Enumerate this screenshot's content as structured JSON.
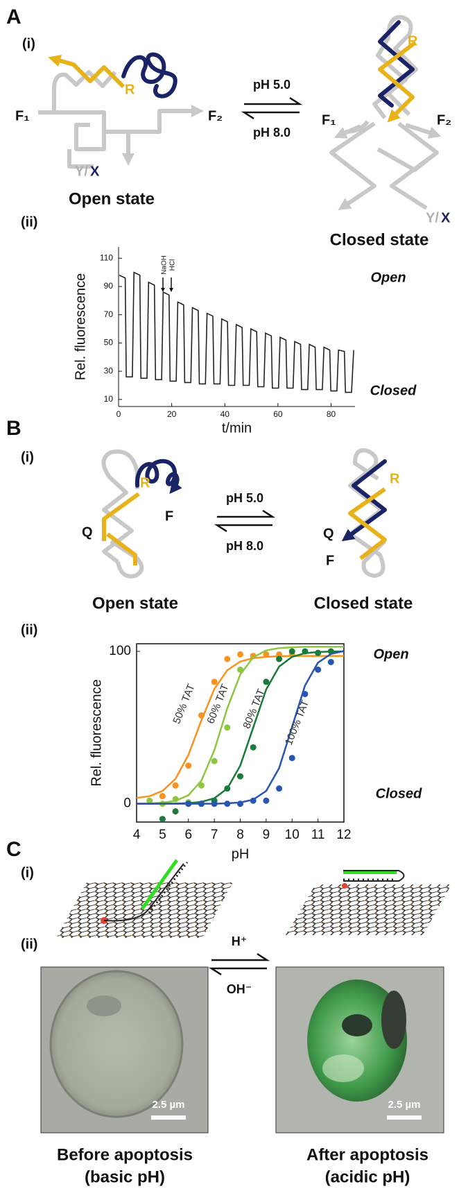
{
  "panel_labels": [
    "A",
    "B",
    "C"
  ],
  "subpanel_labels": [
    "(i)",
    "(ii)"
  ],
  "panel_a": {
    "conditions": [
      "pH 5.0",
      "pH 8.0"
    ],
    "open_state": {
      "label": "Open state",
      "strand": "R",
      "f1": "F₁",
      "f2": "F₂",
      "y": "Y/",
      "x": "X"
    },
    "closed_state": {
      "label": "Closed state",
      "strand": "R",
      "f1": "F₁",
      "f2": "F₂",
      "y": "Y/",
      "x": "X"
    }
  },
  "panel_b": {
    "conditions": [
      "pH 5.0",
      "pH 8.0"
    ],
    "open_state": {
      "label": "Open state",
      "r": "R",
      "f": "F",
      "q": "Q"
    },
    "closed_state": {
      "label": "Closed state",
      "r": "R",
      "f": "F",
      "q": "Q"
    }
  },
  "panel_c": {
    "conditions": [
      "H⁺",
      "OH⁻"
    ],
    "images": [
      {
        "scale_bar": "2.5 µm",
        "caption": [
          "Before apoptosis",
          "(basic pH)"
        ]
      },
      {
        "scale_bar": "2.5 µm",
        "caption": [
          "After apoptosis",
          "(acidic pH)"
        ]
      }
    ]
  },
  "chart_data": [
    {
      "type": "line",
      "x_label": "t/min",
      "y_label": "Rel. fluorescence",
      "xlim": [
        0,
        89
      ],
      "ylim": [
        5,
        118
      ],
      "xticks": [
        0,
        20,
        40,
        60,
        80
      ],
      "yticks": [
        10,
        30,
        50,
        70,
        90,
        110
      ],
      "annotations": [
        "NaOH",
        "HCl"
      ],
      "state_labels": [
        "Open",
        "Closed"
      ],
      "x": [
        0.3,
        2.5,
        2.9,
        5.2,
        5.8,
        8,
        8.4,
        10.7,
        11.3,
        13.5,
        13.9,
        16.2,
        16.8,
        19,
        19.4,
        21.7,
        22.3,
        24.5,
        24.9,
        27.2,
        27.8,
        30,
        30.4,
        32.7,
        33.3,
        35.5,
        35.9,
        38.2,
        38.8,
        41,
        41.4,
        43.7,
        44.3,
        46.5,
        46.9,
        49.2,
        49.8,
        52,
        52.4,
        54.7,
        55.3,
        57.5,
        57.9,
        60.2,
        60.8,
        63,
        63.4,
        65.7,
        66.3,
        68.5,
        68.9,
        71.2,
        71.8,
        74,
        74.4,
        76.7,
        77.3,
        79.5,
        79.9,
        82.2,
        82.8,
        85,
        85.4,
        87.7,
        88.5
      ],
      "series": [
        {
          "color": "#222222",
          "values": [
            98,
            96,
            26,
            26,
            100,
            98,
            25,
            25,
            93,
            91,
            24,
            24,
            86,
            84,
            23,
            23,
            79,
            77,
            22,
            22,
            75,
            73,
            21,
            21,
            71,
            69,
            21,
            21,
            67,
            65,
            20,
            20,
            63,
            61,
            20,
            20,
            60,
            58,
            19,
            19,
            57,
            55,
            18,
            18,
            54,
            52,
            18,
            18,
            51,
            49,
            17,
            17,
            49,
            47,
            17,
            17,
            47,
            45,
            16,
            16,
            45,
            44,
            15,
            15,
            45
          ]
        }
      ]
    },
    {
      "type": "scatter",
      "x_label": "pH",
      "y_label": "Rel. fluorescence",
      "xlim": [
        4,
        12
      ],
      "ylim": [
        -12,
        105
      ],
      "xticks": [
        4,
        5,
        6,
        7,
        8,
        9,
        10,
        11,
        12
      ],
      "yticks": [
        0,
        100
      ],
      "state_labels": [
        "Open",
        "Closed"
      ],
      "fit_x": [
        4,
        4.5,
        5,
        5.5,
        6,
        6.5,
        7,
        7.5,
        8,
        8.5,
        9,
        9.5,
        10,
        10.5,
        11,
        11.5,
        12
      ],
      "series": [
        {
          "name": "50% TAT",
          "color": "#f7931e",
          "x": [
            5,
            5.5,
            6,
            6.5,
            7,
            7.5,
            8,
            8.5,
            9,
            9.5,
            10
          ],
          "values": [
            5,
            12,
            25,
            58,
            80,
            95,
            98,
            97,
            98,
            98,
            98
          ],
          "fit": [
            3.8,
            5,
            8.4,
            16.3,
            32.1,
            54.7,
            75.3,
            87.6,
            93.3,
            95.6,
            96.4,
            96.8,
            97,
            97,
            97,
            97,
            97
          ]
        },
        {
          "name": "60% TAT",
          "color": "#8dc63f",
          "x": [
            4.5,
            5,
            5.5,
            6,
            6.5,
            7,
            7.5,
            8
          ],
          "values": [
            2,
            0,
            3,
            1,
            12,
            28,
            50,
            88
          ],
          "fit": [
            0.1,
            0.2,
            0.7,
            1.9,
            5.6,
            15.1,
            35.1,
            62.7,
            84.8,
            96.1,
            100.6,
            102.2,
            102.7,
            103,
            103,
            103,
            103
          ]
        },
        {
          "name": "80% TAT",
          "color": "#1a7a3a",
          "x": [
            5,
            5.5,
            6,
            6.5,
            7,
            7.5,
            8,
            8.5,
            9,
            9.5,
            10,
            10.5,
            11,
            11.5
          ],
          "values": [
            -10,
            -5,
            0,
            0,
            2,
            10,
            18,
            37,
            80,
            95,
            100,
            100,
            99,
            100
          ],
          "fit": [
            0,
            0,
            0.1,
            0.1,
            0.4,
            1.2,
            3.6,
            10,
            25,
            50,
            75,
            90,
            96.4,
            98.8,
            99.6,
            99.9,
            100
          ]
        },
        {
          "name": "100% TAT",
          "color": "#2855b0",
          "x": [
            6,
            6.5,
            7,
            7.5,
            8,
            8.5,
            9,
            9.5,
            10,
            10.5,
            11,
            11.5
          ],
          "values": [
            0,
            0,
            0,
            0,
            0,
            2,
            2,
            10,
            30,
            72,
            88,
            93
          ],
          "fit": [
            0,
            0,
            0,
            0,
            0,
            0,
            0,
            0.3,
            0.8,
            2.7,
            8.4,
            23.4,
            50.5,
            77.6,
            92.6,
            98.3,
            100.2
          ]
        }
      ]
    }
  ]
}
